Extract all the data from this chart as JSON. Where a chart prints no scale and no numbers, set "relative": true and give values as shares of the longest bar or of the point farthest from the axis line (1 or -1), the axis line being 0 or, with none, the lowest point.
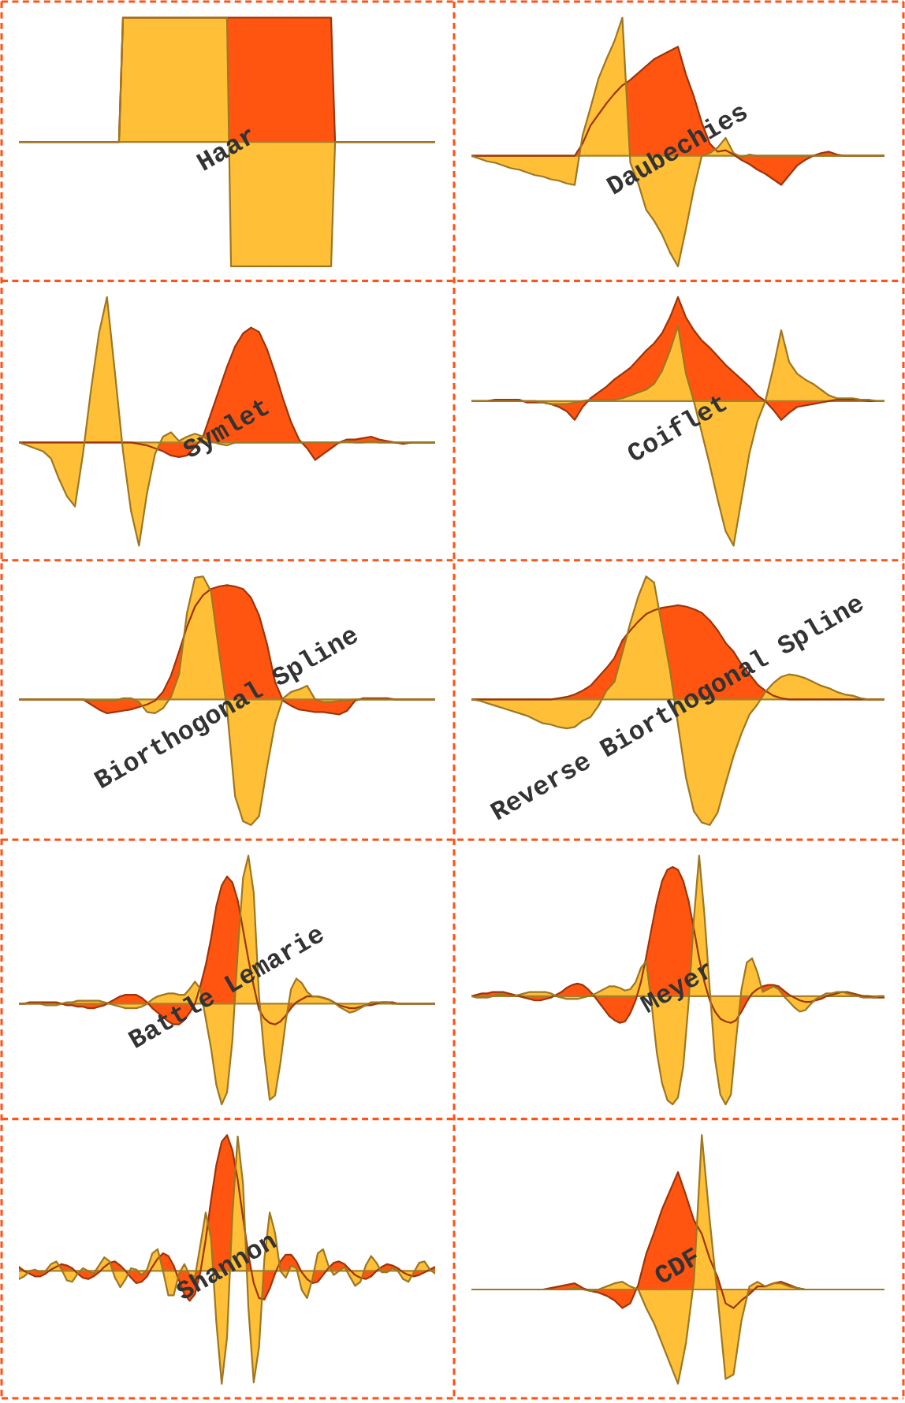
{
  "chart_data": [
    {
      "type": "area",
      "title": "Haar",
      "relative": true,
      "categories": [
        null,
        null,
        null,
        null,
        null,
        null,
        null,
        null,
        null,
        null,
        null,
        null,
        null,
        null,
        null,
        null,
        null,
        null,
        null,
        null,
        null,
        null,
        null,
        null,
        null,
        null,
        null,
        null,
        null,
        null,
        null,
        null,
        null,
        null,
        null,
        null,
        null,
        null,
        null,
        null,
        null,
        null,
        null,
        null,
        null,
        null,
        null,
        null,
        null,
        null,
        null,
        null,
        null,
        null,
        null,
        null,
        null,
        null,
        null,
        null,
        null,
        null,
        null,
        null,
        null,
        null,
        null,
        null,
        null,
        null,
        null,
        null,
        null,
        null,
        null,
        null,
        null,
        null,
        null,
        null,
        null,
        null,
        null,
        null,
        null,
        null,
        null,
        null,
        null,
        null,
        null,
        null,
        null,
        null,
        null,
        null,
        null,
        null,
        null,
        null,
        null,
        null,
        null,
        null,
        null
      ],
      "series": [
        {
          "color": "#ff5511",
          "values": [
            0,
            0,
            0,
            0,
            0,
            0,
            0,
            0,
            0,
            0,
            0,
            0,
            0,
            0,
            0,
            0,
            0,
            0,
            0,
            0,
            0,
            0,
            0,
            0,
            0,
            0,
            1,
            1,
            1,
            1,
            1,
            1,
            1,
            1,
            1,
            1,
            1,
            1,
            1,
            1,
            1,
            1,
            1,
            1,
            1,
            1,
            1,
            1,
            1,
            1,
            1,
            1,
            1,
            1,
            1,
            1,
            1,
            1,
            1,
            1,
            1,
            1,
            1,
            1,
            1,
            1,
            1,
            1,
            1,
            1,
            1,
            1,
            1,
            1,
            1,
            1,
            1,
            1,
            1,
            0,
            0,
            0,
            0,
            0,
            0,
            0,
            0,
            0,
            0,
            0,
            0,
            0,
            0,
            0,
            0,
            0,
            0,
            0,
            0,
            0,
            0,
            0,
            0,
            0,
            0
          ]
        },
        {
          "color": "#ffc038",
          "values": [
            0,
            0,
            0,
            0,
            0,
            0,
            0,
            0,
            0,
            0,
            0,
            0,
            0,
            0,
            0,
            0,
            0,
            0,
            0,
            0,
            0,
            0,
            0,
            0,
            0,
            0,
            1,
            1,
            1,
            1,
            1,
            1,
            1,
            1,
            1,
            1,
            1,
            1,
            1,
            1,
            1,
            1,
            1,
            1,
            1,
            1,
            1,
            1,
            1,
            1,
            1,
            1,
            1,
            -1,
            -1,
            -1,
            -1,
            -1,
            -1,
            -1,
            -1,
            -1,
            -1,
            -1,
            -1,
            -1,
            -1,
            -1,
            -1,
            -1,
            -1,
            -1,
            -1,
            -1,
            -1,
            -1,
            -1,
            -1,
            -1,
            0,
            0,
            0,
            0,
            0,
            0,
            0,
            0,
            0,
            0,
            0,
            0,
            0,
            0,
            0,
            0,
            0,
            0,
            0,
            0,
            0,
            0,
            0,
            0,
            0,
            0
          ]
        }
      ]
    },
    {
      "type": "area",
      "title": "Daubechies",
      "relative": true,
      "categories": [
        null,
        null,
        null,
        null,
        null,
        null,
        null,
        null,
        null,
        null,
        null,
        null,
        null,
        null,
        null,
        null,
        null,
        null,
        null,
        null,
        null,
        null,
        null,
        null,
        null,
        null,
        null,
        null,
        null,
        null,
        null,
        null,
        null,
        null,
        null,
        null,
        null,
        null,
        null,
        null,
        null,
        null,
        null,
        null,
        null,
        null,
        null,
        null,
        null,
        null,
        null,
        null,
        null
      ],
      "series": [
        {
          "color": "#ff5511",
          "values": [
            0,
            0,
            0,
            0,
            0,
            0,
            0,
            0,
            0,
            0,
            0,
            0,
            0,
            0,
            0.09,
            0.22,
            0.3,
            0.38,
            0.45,
            0.51,
            0.55,
            0.6,
            0.65,
            0.7,
            0.73,
            0.76,
            0.79,
            0.59,
            0.43,
            0.24,
            0.09,
            0.03,
            0.04,
            0.01,
            -0.03,
            -0.06,
            -0.1,
            -0.13,
            -0.17,
            -0.21,
            -0.14,
            -0.07,
            -0.03,
            0,
            0.02,
            0.03,
            0.01,
            0,
            0,
            0,
            0,
            0,
            0
          ]
        },
        {
          "color": "#ffc038",
          "values": [
            0,
            -0.02,
            -0.04,
            -0.05,
            -0.07,
            -0.09,
            -0.1,
            -0.12,
            -0.14,
            -0.15,
            -0.17,
            -0.18,
            -0.2,
            -0.21,
            0.15,
            0.35,
            0.56,
            0.7,
            0.83,
            1,
            -0.05,
            -0.2,
            -0.39,
            -0.47,
            -0.57,
            -0.7,
            -0.8,
            -0.53,
            -0.24,
            0,
            0.02,
            0.06,
            0.13,
            0.02,
            -0.01,
            0.01,
            0,
            0,
            0,
            0,
            0,
            0,
            0,
            0,
            0,
            0,
            0,
            0,
            0,
            0,
            0,
            0,
            0
          ]
        }
      ]
    },
    {
      "type": "area",
      "title": "Symlet",
      "relative": true,
      "categories": [
        null,
        null,
        null,
        null,
        null,
        null,
        null,
        null,
        null,
        null,
        null,
        null,
        null,
        null,
        null,
        null,
        null,
        null,
        null,
        null,
        null,
        null,
        null,
        null,
        null,
        null,
        null,
        null,
        null,
        null,
        null,
        null,
        null,
        null,
        null,
        null,
        null,
        null,
        null,
        null,
        null,
        null,
        null,
        null,
        null,
        null,
        null,
        null,
        null,
        null,
        null,
        null,
        null
      ],
      "series": [
        {
          "color": "#ff5511",
          "values": [
            0,
            0,
            0,
            0,
            0,
            0,
            0,
            0,
            0,
            0,
            0,
            0,
            0,
            0,
            0,
            -0.01,
            -0.02,
            -0.04,
            -0.06,
            -0.09,
            -0.1,
            -0.09,
            -0.03,
            0.04,
            0.2,
            0.36,
            0.52,
            0.66,
            0.75,
            0.79,
            0.76,
            0.64,
            0.48,
            0.3,
            0.14,
            0.02,
            -0.04,
            -0.12,
            -0.08,
            -0.04,
            0,
            0.02,
            0.02,
            0.03,
            0.04,
            0.02,
            0.01,
            0,
            -0.01,
            0,
            0,
            0,
            0
          ]
        },
        {
          "color": "#ffc038",
          "values": [
            0,
            -0.02,
            -0.04,
            -0.06,
            -0.11,
            -0.25,
            -0.37,
            -0.44,
            -0.08,
            0.36,
            0.75,
            1,
            0.48,
            -0.06,
            -0.47,
            -0.71,
            -0.35,
            -0.08,
            0.04,
            0.07,
            0.01,
            0.04,
            0.06,
            0.04,
            0.01,
            -0.01,
            -0.02,
            0,
            0,
            0,
            0,
            0,
            0,
            0,
            0,
            0,
            0,
            0,
            0,
            0,
            0,
            0.01,
            0,
            0,
            0.01,
            0,
            0,
            0,
            0,
            0,
            0,
            0,
            0
          ]
        }
      ]
    },
    {
      "type": "area",
      "title": "Coiflet",
      "relative": true,
      "categories": [
        null,
        null,
        null,
        null,
        null,
        null,
        null,
        null,
        null,
        null,
        null,
        null,
        null,
        null,
        null,
        null,
        null,
        null,
        null,
        null,
        null,
        null,
        null,
        null,
        null,
        null,
        null,
        null,
        null,
        null,
        null,
        null,
        null,
        null,
        null,
        null,
        null,
        null,
        null,
        null,
        null,
        null,
        null,
        null,
        null,
        null,
        null,
        null,
        null,
        null,
        null,
        null,
        null
      ],
      "series": [
        {
          "color": "#ff5511",
          "values": [
            0,
            0,
            0,
            0.01,
            0.01,
            0.01,
            0.01,
            -0.01,
            -0.01,
            -0.01,
            -0.02,
            -0.04,
            -0.07,
            -0.13,
            -0.04,
            0.02,
            0.06,
            0.1,
            0.15,
            0.19,
            0.23,
            0.29,
            0.35,
            0.4,
            0.47,
            0.58,
            0.72,
            0.58,
            0.49,
            0.42,
            0.37,
            0.31,
            0.25,
            0.2,
            0.15,
            0.1,
            0.04,
            0,
            -0.06,
            -0.13,
            -0.08,
            -0.04,
            -0.03,
            -0.02,
            -0.01,
            0,
            0.01,
            0.01,
            0.01,
            0.01,
            0,
            0,
            0
          ]
        },
        {
          "color": "#ffc038",
          "values": [
            0,
            0,
            0,
            0,
            0,
            0,
            0,
            0,
            0,
            -0.01,
            -0.02,
            -0.02,
            -0.02,
            -0.01,
            0,
            0.01,
            0.01,
            0.01,
            0.01,
            0.02,
            0.04,
            0.06,
            0.08,
            0.12,
            0.21,
            0.35,
            0.52,
            0.19,
            0,
            -0.22,
            -0.44,
            -0.68,
            -0.9,
            -1,
            -0.68,
            -0.36,
            -0.14,
            0,
            0.23,
            0.49,
            0.27,
            0.19,
            0.15,
            0.12,
            0.08,
            0.04,
            0.02,
            0.02,
            0.02,
            0.01,
            0.01,
            0,
            0
          ]
        }
      ]
    },
    {
      "type": "area",
      "title": "Biorthogonal Spline",
      "relative": true,
      "categories": [
        null,
        null,
        null,
        null,
        null,
        null,
        null,
        null,
        null,
        null,
        null,
        null,
        null,
        null,
        null,
        null,
        null,
        null,
        null,
        null,
        null,
        null,
        null,
        null,
        null,
        null,
        null,
        null,
        null,
        null,
        null,
        null,
        null,
        null,
        null,
        null,
        null,
        null,
        null,
        null,
        null,
        null,
        null,
        null,
        null,
        null,
        null,
        null,
        null,
        null,
        null,
        null,
        null
      ],
      "series": [
        {
          "color": "#ff5511",
          "values": [
            0,
            0,
            0,
            0,
            0,
            0,
            0,
            0,
            0,
            -0.04,
            -0.08,
            -0.11,
            -0.1,
            -0.09,
            -0.08,
            -0.06,
            -0.04,
            -0.01,
            0.06,
            0.19,
            0.38,
            0.58,
            0.74,
            0.83,
            0.88,
            0.9,
            0.91,
            0.9,
            0.88,
            0.81,
            0.67,
            0.44,
            0.14,
            -0.01,
            -0.05,
            -0.08,
            -0.09,
            -0.1,
            -0.1,
            -0.11,
            -0.12,
            -0.09,
            -0.01,
            0.01,
            0.01,
            0.01,
            0.01,
            0,
            0,
            0,
            0,
            0,
            0
          ]
        },
        {
          "color": "#ffc038",
          "values": [
            0,
            0,
            0,
            0,
            0,
            0,
            0,
            0,
            0,
            -0.01,
            -0.01,
            -0.01,
            -0.01,
            0.01,
            0.01,
            -0.02,
            -0.1,
            -0.11,
            -0.07,
            0.02,
            0.2,
            0.69,
            0.97,
            0.98,
            0.86,
            0.38,
            -0.08,
            -0.77,
            -0.97,
            -1,
            -0.93,
            -0.54,
            -0.19,
            0.01,
            0.06,
            0.08,
            0.11,
            0,
            -0.02,
            -0.02,
            -0.01,
            -0.01,
            0,
            0,
            0,
            0,
            0,
            0,
            0,
            0,
            0,
            0,
            0
          ]
        }
      ]
    },
    {
      "type": "area",
      "title": "Reverse Biorthogonal Spline",
      "relative": true,
      "categories": [
        null,
        null,
        null,
        null,
        null,
        null,
        null,
        null,
        null,
        null,
        null,
        null,
        null,
        null,
        null,
        null,
        null,
        null,
        null,
        null,
        null,
        null,
        null,
        null,
        null,
        null,
        null,
        null,
        null,
        null,
        null,
        null,
        null,
        null,
        null,
        null,
        null,
        null,
        null,
        null,
        null,
        null,
        null,
        null,
        null,
        null,
        null,
        null,
        null,
        null,
        null,
        null,
        null
      ],
      "series": [
        {
          "color": "#ff5511",
          "values": [
            0,
            0,
            0,
            0,
            0,
            0,
            0,
            0,
            0,
            0,
            0,
            0.01,
            0.02,
            0.04,
            0.07,
            0.11,
            0.18,
            0.25,
            0.33,
            0.47,
            0.55,
            0.62,
            0.68,
            0.71,
            0.73,
            0.74,
            0.75,
            0.74,
            0.72,
            0.69,
            0.63,
            0.55,
            0.45,
            0.38,
            0.28,
            0.2,
            0.12,
            0.07,
            0.03,
            0.01,
            0,
            0,
            0,
            0,
            0,
            0,
            0,
            0,
            0,
            0,
            0,
            0,
            0
          ]
        },
        {
          "color": "#ffc038",
          "values": [
            0,
            -0.01,
            -0.03,
            -0.05,
            -0.07,
            -0.09,
            -0.11,
            -0.13,
            -0.16,
            -0.19,
            -0.2,
            -0.22,
            -0.23,
            -0.22,
            -0.17,
            -0.14,
            -0.05,
            0.07,
            0.14,
            0.37,
            0.61,
            0.82,
            0.98,
            0.93,
            0.58,
            0.23,
            -0.2,
            -0.62,
            -0.89,
            -0.98,
            -1,
            -0.9,
            -0.67,
            -0.45,
            -0.27,
            -0.12,
            -0.04,
            0.06,
            0.13,
            0.18,
            0.2,
            0.19,
            0.17,
            0.14,
            0.11,
            0.09,
            0.06,
            0.04,
            0.03,
            0.01,
            0,
            0,
            0
          ]
        }
      ]
    },
    {
      "type": "area",
      "title": "Battle Lemarie",
      "relative": true,
      "categories": [
        null,
        null,
        null,
        null,
        null,
        null,
        null,
        null,
        null,
        null,
        null,
        null,
        null,
        null,
        null,
        null,
        null,
        null,
        null,
        null,
        null,
        null,
        null,
        null,
        null,
        null,
        null,
        null,
        null,
        null,
        null,
        null,
        null,
        null,
        null,
        null,
        null,
        null,
        null,
        null,
        null,
        null,
        null,
        null,
        null,
        null,
        null,
        null,
        null,
        null,
        null,
        null,
        null,
        null,
        null,
        null,
        null,
        null,
        null,
        null,
        null,
        null,
        null,
        null,
        null,
        null,
        null,
        null,
        null,
        null,
        null,
        null,
        null,
        null,
        null,
        null,
        null,
        null,
        null
      ],
      "series": [
        {
          "color": "#ff5511",
          "values": [
            0,
            0,
            0.01,
            0.01,
            0.01,
            0.01,
            0.01,
            0.01,
            0,
            -0.01,
            -0.01,
            -0.02,
            -0.02,
            -0.03,
            -0.03,
            -0.02,
            -0.01,
            0.01,
            0.03,
            0.05,
            0.06,
            0.06,
            0.06,
            0.04,
            0.01,
            -0.03,
            -0.06,
            -0.09,
            -0.12,
            -0.14,
            -0.14,
            -0.11,
            -0.06,
            0,
            0.12,
            0.26,
            0.44,
            0.66,
            0.8,
            0.86,
            0.82,
            0.7,
            0.5,
            0.3,
            0.12,
            -0.04,
            -0.1,
            -0.13,
            -0.14,
            -0.12,
            -0.08,
            -0.03,
            0.01,
            0.03,
            0.05,
            0.05,
            0.05,
            0.04,
            0.03,
            0.01,
            -0.01,
            -0.02,
            -0.03,
            -0.03,
            -0.02,
            -0.01,
            -0.01,
            0,
            0.01,
            0.01,
            0.01,
            0,
            0,
            0,
            0,
            0,
            0,
            0,
            0
          ]
        },
        {
          "color": "#ffc038",
          "values": [
            0,
            0,
            0,
            0,
            0,
            -0.01,
            -0.01,
            -0.01,
            0,
            0.01,
            0.01,
            0.02,
            0.02,
            0.02,
            0.02,
            0.02,
            0.01,
            0,
            -0.01,
            -0.02,
            -0.03,
            -0.03,
            -0.03,
            -0.02,
            0,
            0.03,
            0.05,
            0.06,
            0.07,
            0.07,
            0.06,
            0.06,
            0.1,
            0.15,
            0.1,
            -0.1,
            -0.3,
            -0.55,
            -0.68,
            -0.6,
            -0.25,
            0.35,
            0.85,
            1,
            0.75,
            0.05,
            -0.35,
            -0.65,
            -0.62,
            -0.4,
            -0.12,
            0.1,
            0.17,
            0.14,
            0.08,
            0.05,
            0.05,
            0.04,
            0.03,
            0.01,
            -0.02,
            -0.04,
            -0.06,
            -0.05,
            -0.03,
            -0.01,
            0.01,
            0.01,
            0.01,
            0.01,
            0,
            0,
            0,
            0,
            0,
            0,
            0,
            0,
            0
          ]
        }
      ]
    },
    {
      "type": "area",
      "title": "Meyer",
      "relative": true,
      "categories": [
        null,
        null,
        null,
        null,
        null,
        null,
        null,
        null,
        null,
        null,
        null,
        null,
        null,
        null,
        null,
        null,
        null,
        null,
        null,
        null,
        null,
        null,
        null,
        null,
        null,
        null,
        null,
        null,
        null,
        null,
        null,
        null,
        null,
        null,
        null,
        null,
        null,
        null,
        null,
        null,
        null,
        null,
        null,
        null,
        null,
        null,
        null,
        null,
        null,
        null,
        null,
        null,
        null,
        null,
        null,
        null,
        null,
        null,
        null,
        null,
        null,
        null,
        null,
        null,
        null,
        null,
        null,
        null,
        null,
        null,
        null,
        null,
        null,
        null,
        null,
        null,
        null,
        null,
        null
      ],
      "series": [
        {
          "color": "#ff5511",
          "values": [
            0,
            0.01,
            0.02,
            0.02,
            0.03,
            0.03,
            0.03,
            0.02,
            0.01,
            0,
            -0.01,
            -0.02,
            -0.03,
            -0.03,
            -0.02,
            -0.01,
            0.01,
            0.03,
            0.06,
            0.08,
            0.09,
            0.08,
            0.05,
            0.01,
            -0.04,
            -0.09,
            -0.14,
            -0.17,
            -0.19,
            -0.18,
            -0.12,
            -0.03,
            0.1,
            0.28,
            0.48,
            0.67,
            0.82,
            0.9,
            0.92,
            0.9,
            0.82,
            0.68,
            0.48,
            0.27,
            0.1,
            -0.03,
            -0.11,
            -0.16,
            -0.18,
            -0.19,
            -0.17,
            -0.11,
            -0.04,
            0.02,
            0.05,
            0.07,
            0.08,
            0.08,
            0.07,
            0.04,
            0.01,
            -0.01,
            -0.03,
            -0.04,
            -0.04,
            -0.03,
            -0.02,
            0,
            0.01,
            0.02,
            0.03,
            0.03,
            0.02,
            0.01,
            0,
            0,
            -0.01,
            -0.01,
            -0.01
          ]
        },
        {
          "color": "#ffc038",
          "values": [
            0,
            -0.01,
            -0.01,
            -0.01,
            0,
            0.01,
            0.01,
            0,
            0,
            0.01,
            0.02,
            0.03,
            0.03,
            0.03,
            0.03,
            0.02,
            0,
            -0.01,
            -0.02,
            -0.02,
            -0.02,
            -0.01,
            0,
            0.01,
            0.03,
            0.05,
            0.07,
            0.07,
            0.06,
            0.04,
            0.05,
            0.1,
            0.2,
            0.25,
            -0.05,
            -0.4,
            -0.62,
            -0.74,
            -0.77,
            -0.72,
            -0.5,
            -0.05,
            0.55,
            1,
            0.58,
            0.05,
            -0.45,
            -0.7,
            -0.77,
            -0.7,
            -0.3,
            0.05,
            0.24,
            0.27,
            0.17,
            0.03,
            0.05,
            0.07,
            0.05,
            0,
            -0.04,
            -0.08,
            -0.11,
            -0.1,
            -0.06,
            -0.02,
            0,
            0.02,
            0.02,
            0.03,
            0.03,
            0.02,
            0.01,
            0,
            -0.01,
            -0.01,
            -0.01,
            0,
            0
          ]
        }
      ]
    },
    {
      "type": "area",
      "title": "Shannon",
      "relative": true,
      "categories": [
        null,
        null,
        null,
        null,
        null,
        null,
        null,
        null,
        null,
        null,
        null,
        null,
        null,
        null,
        null,
        null,
        null,
        null,
        null,
        null,
        null,
        null,
        null,
        null,
        null,
        null,
        null,
        null,
        null,
        null,
        null,
        null,
        null,
        null,
        null,
        null,
        null,
        null,
        null,
        null,
        null,
        null,
        null,
        null,
        null,
        null,
        null,
        null,
        null,
        null,
        null,
        null,
        null,
        null,
        null,
        null,
        null,
        null,
        null,
        null,
        null,
        null,
        null,
        null,
        null,
        null,
        null,
        null,
        null,
        null,
        null,
        null,
        null,
        null,
        null,
        null,
        null,
        null,
        null
      ],
      "series": [
        {
          "color": "#ff5511",
          "values": [
            0.03,
            0,
            -0.02,
            -0.04,
            -0.04,
            -0.02,
            0.01,
            0.03,
            0.05,
            0.04,
            0.02,
            -0.02,
            -0.05,
            -0.06,
            -0.04,
            -0.01,
            0.03,
            0.06,
            0.07,
            0.04,
            0,
            -0.05,
            -0.09,
            -0.08,
            -0.04,
            0.03,
            0.09,
            0.13,
            0.11,
            0.04,
            -0.07,
            -0.17,
            -0.22,
            -0.17,
            -0.01,
            0.23,
            0.52,
            0.78,
            0.95,
            1,
            0.89,
            0.67,
            0.39,
            0.12,
            -0.09,
            -0.2,
            -0.21,
            -0.13,
            -0.02,
            0.07,
            0.12,
            0.12,
            0.07,
            -0.01,
            -0.06,
            -0.09,
            -0.08,
            -0.03,
            0.02,
            0.06,
            0.07,
            0.05,
            0.01,
            -0.03,
            -0.05,
            -0.06,
            -0.04,
            0,
            0.03,
            0.05,
            0.04,
            0.02,
            -0.01,
            -0.03,
            -0.04,
            -0.03,
            -0.01,
            0.01,
            0.03
          ]
        },
        {
          "color": "#ffc038",
          "values": [
            -0.06,
            -0.04,
            0,
            0.01,
            -0.01,
            0,
            0.05,
            0.07,
            0.01,
            -0.07,
            -0.08,
            -0.02,
            0.02,
            0,
            -0.02,
            0.04,
            0.1,
            0.07,
            -0.05,
            -0.12,
            -0.06,
            0.02,
            0.01,
            -0.03,
            0.01,
            0.13,
            0.16,
            0,
            -0.18,
            -0.18,
            -0.02,
            0.05,
            -0.03,
            -0.04,
            0.19,
            0.43,
            0.24,
            -0.38,
            -0.83,
            -0.49,
            0.41,
            0.99,
            0.64,
            -0.27,
            -0.82,
            -0.56,
            0.09,
            0.43,
            0.28,
            0,
            -0.05,
            0.04,
            0.02,
            -0.14,
            -0.2,
            -0.06,
            0.13,
            0.16,
            0.04,
            -0.03,
            0,
            0.03,
            -0.04,
            -0.11,
            -0.08,
            0.04,
            0.11,
            0.06,
            -0.01,
            -0.01,
            0.02,
            0,
            -0.06,
            -0.08,
            -0.01,
            0.06,
            0.07,
            0.01,
            -0.02
          ]
        }
      ]
    },
    {
      "type": "area",
      "title": "CDF",
      "relative": true,
      "categories": [
        null,
        null,
        null,
        null,
        null,
        null,
        null,
        null,
        null,
        null,
        null,
        null,
        null,
        null,
        null,
        null,
        null,
        null,
        null,
        null,
        null,
        null,
        null,
        null,
        null,
        null,
        null,
        null,
        null,
        null,
        null,
        null,
        null,
        null,
        null,
        null,
        null,
        null,
        null,
        null,
        null,
        null,
        null,
        null,
        null,
        null,
        null,
        null,
        null,
        null,
        null,
        null,
        null
      ],
      "series": [
        {
          "color": "#ff5511",
          "values": [
            0,
            0,
            0,
            0,
            0,
            0,
            0,
            0,
            0,
            0,
            0.01,
            0.02,
            0.03,
            0.04,
            0.01,
            -0.01,
            -0.02,
            -0.04,
            -0.07,
            -0.12,
            -0.09,
            0.03,
            0.23,
            0.37,
            0.52,
            0.64,
            0.76,
            0.61,
            0.45,
            0.36,
            0.2,
            0.08,
            -0.09,
            -0.12,
            -0.07,
            -0.03,
            0.02,
            0.02,
            0.04,
            0.05,
            0.03,
            0.01,
            0,
            0,
            0,
            0,
            0,
            0,
            0,
            0,
            0,
            0,
            0
          ]
        },
        {
          "color": "#ffc038",
          "values": [
            0,
            0,
            0,
            0,
            0,
            0,
            0,
            0,
            0,
            0,
            0,
            0,
            0,
            0.01,
            0,
            -0.01,
            0,
            0.02,
            0.04,
            0.05,
            0.02,
            0,
            -0.12,
            -0.22,
            -0.35,
            -0.48,
            -0.61,
            -0.35,
            0.05,
            1,
            0.45,
            -0.05,
            -0.58,
            -0.55,
            -0.2,
            0.02,
            0.05,
            0.02,
            0.04,
            0.04,
            0.02,
            0.01,
            0,
            0,
            0,
            0,
            0,
            0,
            0,
            0,
            0,
            0,
            0
          ]
        }
      ]
    }
  ]
}
